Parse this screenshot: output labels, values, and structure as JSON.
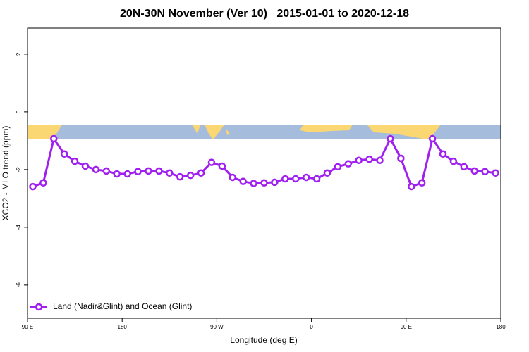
{
  "chart_data": {
    "type": "line",
    "title": "20N-30N November (Ver 10)   2015-01-01 to 2020-12-18",
    "x_label": "Longitude (deg E)",
    "y_label": "XCO2 - MLO trend (ppm)",
    "x": [
      95,
      105,
      115,
      125,
      135,
      145,
      155,
      165,
      175,
      185,
      195,
      205,
      215,
      225,
      235,
      245,
      255,
      265,
      275,
      285,
      295,
      305,
      315,
      325,
      335,
      345,
      355,
      365,
      375,
      385,
      395,
      405,
      415,
      425,
      435,
      445,
      455,
      465,
      475,
      485,
      495,
      505,
      515,
      525,
      535
    ],
    "series": [
      {
        "name": "Land (Nadir&Glint) and Ocean (Glint)",
        "color": "#a020f0",
        "values": [
          -2.59,
          -2.46,
          -0.93,
          -1.46,
          -1.71,
          -1.88,
          -2.0,
          -2.05,
          -2.15,
          -2.15,
          -2.07,
          -2.05,
          -2.05,
          -2.12,
          -2.25,
          -2.2,
          -2.12,
          -1.75,
          -1.88,
          -2.27,
          -2.41,
          -2.48,
          -2.46,
          -2.44,
          -2.32,
          -2.32,
          -2.27,
          -2.32,
          -2.12,
          -1.9,
          -1.8,
          -1.68,
          -1.64,
          -1.68,
          -0.93,
          -1.61,
          -2.59,
          -2.46,
          -0.93,
          -1.46,
          -1.71,
          -1.9,
          -2.05,
          -2.07,
          -2.12
        ]
      }
    ],
    "xlim": [
      90,
      540
    ],
    "xticks": [
      {
        "value": 90,
        "label": "90 E"
      },
      180,
      {
        "value": 270,
        "label": "90 W"
      },
      {
        "value": 360,
        "label": "0"
      },
      {
        "value": 450,
        "label": "90 E"
      },
      {
        "value": 540,
        "label": "180"
      }
    ],
    "ylim": [
      -7.15,
      2.9
    ],
    "yticks": [
      2,
      0,
      -2,
      -4,
      -6
    ],
    "legend": "bottom-left"
  }
}
